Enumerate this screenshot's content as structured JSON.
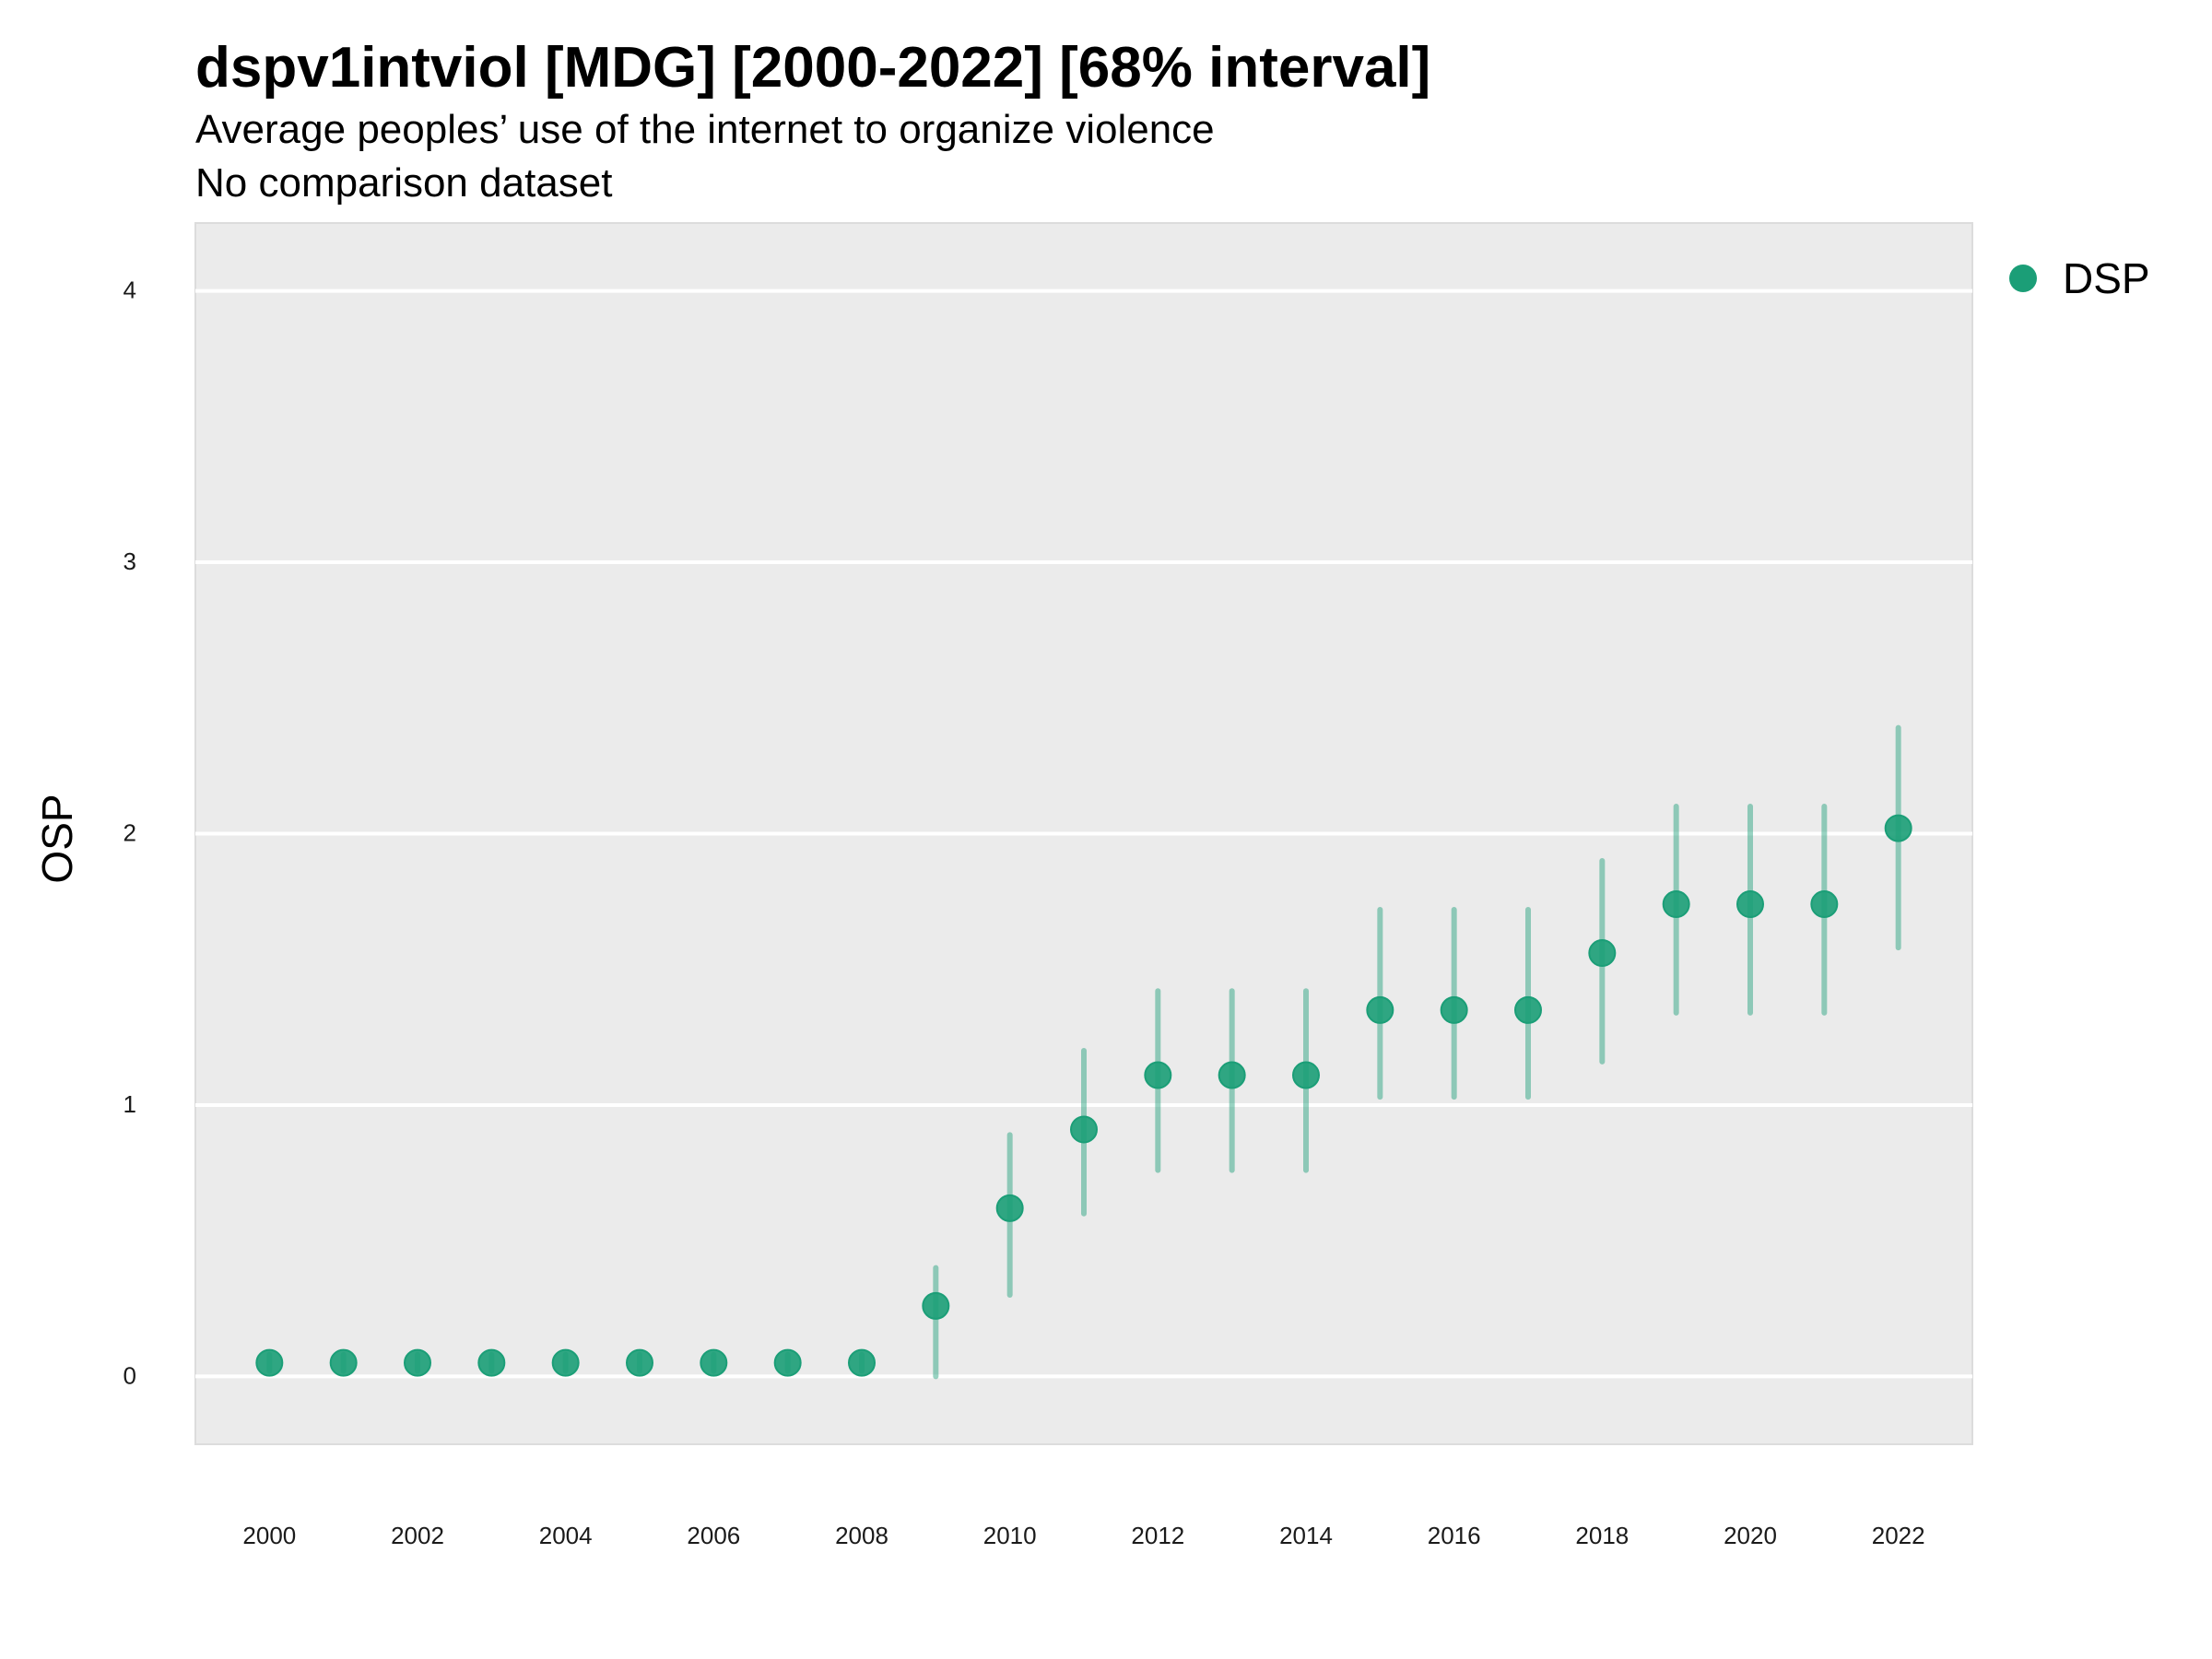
{
  "chart_data": {
    "type": "scatter",
    "title": "dspv1intviol [MDG] [2000-2022] [68% interval]",
    "subtitle": "Average peoples’ use of the internet to organize violence",
    "caption": "No comparison dataset",
    "xlabel": "",
    "ylabel": "OSP",
    "x_ticks": [
      "2000",
      "2002",
      "2004",
      "2006",
      "2008",
      "2010",
      "2012",
      "2014",
      "2016",
      "2018",
      "2020",
      "2022"
    ],
    "y_ticks": [
      "0",
      "1",
      "2",
      "3",
      "4"
    ],
    "xlim": [
      1999,
      2023
    ],
    "ylim": [
      -0.25,
      4.25
    ],
    "grid": true,
    "legend_position": "right-top",
    "series": [
      {
        "name": "DSP",
        "color": "#1b9e77",
        "x": [
          2000,
          2001,
          2002,
          2003,
          2004,
          2005,
          2006,
          2007,
          2008,
          2009,
          2010,
          2011,
          2012,
          2013,
          2014,
          2015,
          2016,
          2017,
          2018,
          2019,
          2020,
          2021,
          2022
        ],
        "y": [
          0.05,
          0.05,
          0.05,
          0.05,
          0.05,
          0.05,
          0.05,
          0.05,
          0.05,
          0.26,
          0.62,
          0.91,
          1.11,
          1.11,
          1.11,
          1.35,
          1.35,
          1.35,
          1.56,
          1.74,
          1.74,
          1.74,
          2.02
        ],
        "lower": [
          0.02,
          0.02,
          0.02,
          0.02,
          0.02,
          0.02,
          0.02,
          0.02,
          0.02,
          0.0,
          0.3,
          0.6,
          0.76,
          0.76,
          0.76,
          1.03,
          1.03,
          1.03,
          1.16,
          1.34,
          1.34,
          1.34,
          1.58
        ],
        "upper": [
          0.08,
          0.08,
          0.08,
          0.08,
          0.08,
          0.08,
          0.08,
          0.08,
          0.08,
          0.4,
          0.89,
          1.2,
          1.42,
          1.42,
          1.42,
          1.72,
          1.72,
          1.72,
          1.9,
          2.1,
          2.1,
          2.1,
          2.39
        ]
      }
    ]
  }
}
